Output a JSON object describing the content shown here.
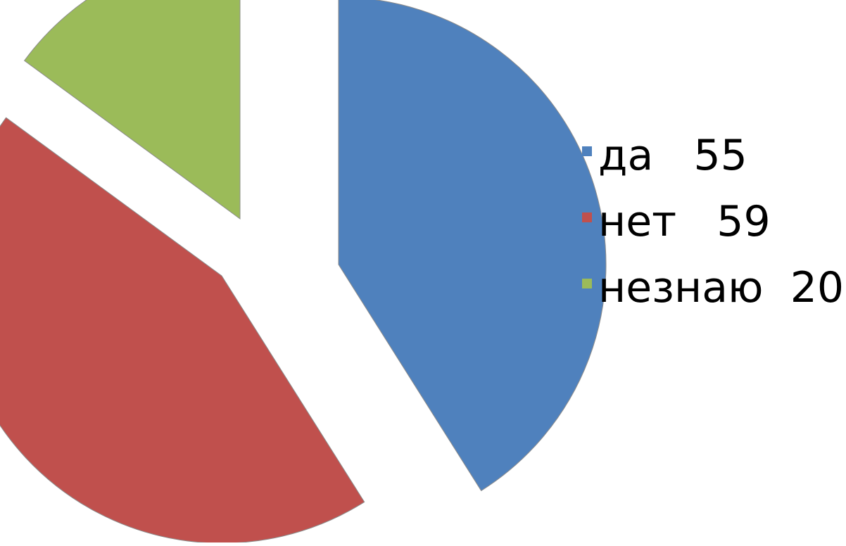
{
  "chart_data": {
    "type": "pie",
    "exploded": true,
    "start_angle_deg": 0,
    "direction": "clockwise",
    "legend_position": "right",
    "slices": [
      {
        "label": "да   55",
        "category": "да",
        "value": 55,
        "color": "#4f81bd"
      },
      {
        "label": "нет   59",
        "category": "нет",
        "value": 59,
        "color": "#c0504d"
      },
      {
        "label": "незнаю  20",
        "category": "незнаю",
        "value": 20,
        "color": "#9bbb59"
      }
    ]
  }
}
